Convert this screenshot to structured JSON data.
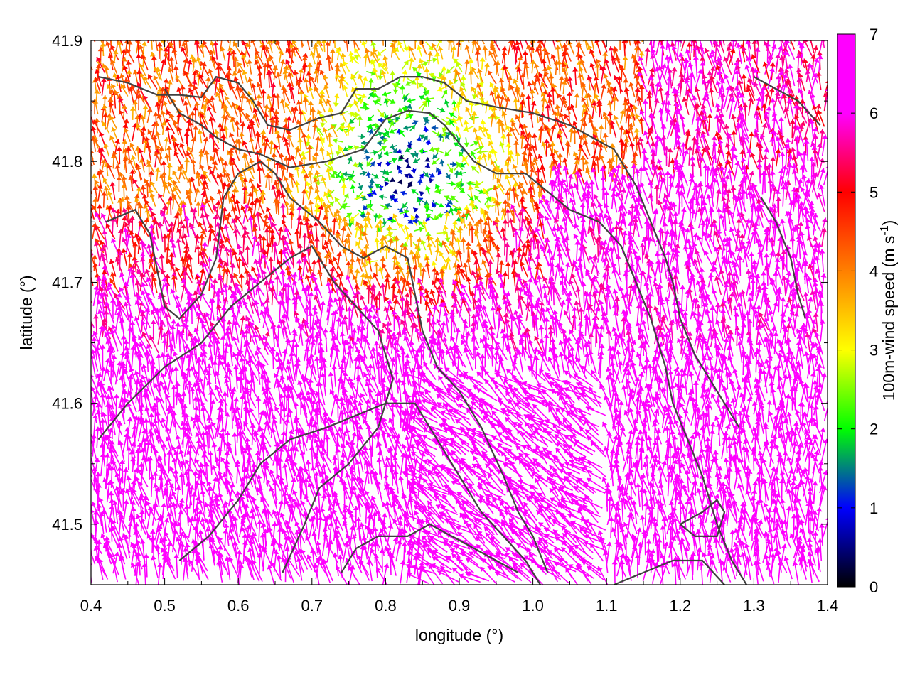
{
  "chart_data": {
    "type": "vector-field",
    "xlabel": "longitude (°)",
    "ylabel": "latitude (°)",
    "xlim": [
      0.4,
      1.4
    ],
    "ylim": [
      41.45,
      41.9
    ],
    "xticks": [
      0.4,
      0.5,
      0.6,
      0.7,
      0.8,
      0.9,
      1.0,
      1.1,
      1.2,
      1.3,
      1.4
    ],
    "xtick_labels": [
      "0.4",
      "0.5",
      "0.6",
      "0.7",
      "0.8",
      "0.9",
      "1.0",
      "1.1",
      "1.2",
      "1.3",
      "1.4"
    ],
    "yticks": [
      41.5,
      41.6,
      41.7,
      41.8,
      41.9
    ],
    "ytick_labels": [
      "41.5",
      "41.6",
      "41.7",
      "41.8",
      "41.9"
    ],
    "colorbar": {
      "label_main": "100m-wind speed (m s",
      "label_sup": "-1",
      "label_end": ")",
      "range": [
        0,
        7
      ],
      "ticks": [
        0,
        1,
        2,
        3,
        4,
        5,
        6,
        7
      ],
      "tick_labels": [
        "0",
        "1",
        "2",
        "3",
        "4",
        "5",
        "6",
        "7"
      ],
      "palette": [
        "#000000",
        "#0000ff",
        "#00ff00",
        "#ffff00",
        "#ff8000",
        "#ff0000",
        "#ff00ff"
      ]
    },
    "grid": false,
    "vectors": {
      "description_regions": [
        {
          "lon_range": [
            0.4,
            1.4
          ],
          "lat_range": [
            41.45,
            41.65
          ],
          "dominant_speed": 7,
          "dominant_direction": "northward to north-west"
        },
        {
          "lon_range": [
            0.4,
            1.4
          ],
          "lat_range": [
            41.65,
            41.78
          ],
          "dominant_speed": 5,
          "dominant_direction": "north-west"
        },
        {
          "lon_range": [
            0.6,
            1.0
          ],
          "lat_range": [
            41.78,
            41.9
          ],
          "dominant_speed": 3,
          "dominant_direction": "variable"
        }
      ]
    },
    "contours": [
      {
        "points": [
          [
            0.41,
            41.87
          ],
          [
            0.45,
            41.865
          ],
          [
            0.49,
            41.855
          ],
          [
            0.52,
            41.855
          ],
          [
            0.55,
            41.853
          ],
          [
            0.57,
            41.87
          ],
          [
            0.6,
            41.865
          ],
          [
            0.62,
            41.85
          ],
          [
            0.64,
            41.83
          ],
          [
            0.67,
            41.826
          ],
          [
            0.71,
            41.836
          ],
          [
            0.74,
            41.84
          ],
          [
            0.76,
            41.86
          ],
          [
            0.79,
            41.86
          ],
          [
            0.82,
            41.87
          ],
          [
            0.85,
            41.87
          ],
          [
            0.88,
            41.865
          ],
          [
            0.91,
            41.85
          ],
          [
            0.95,
            41.845
          ],
          [
            1.0,
            41.84
          ],
          [
            1.05,
            41.83
          ],
          [
            1.08,
            41.82
          ],
          [
            1.11,
            41.81
          ],
          [
            1.14,
            41.78
          ],
          [
            1.16,
            41.75
          ],
          [
            1.18,
            41.72
          ],
          [
            1.19,
            41.7
          ],
          [
            1.2,
            41.67
          ],
          [
            1.22,
            41.64
          ],
          [
            1.24,
            41.62
          ],
          [
            1.26,
            41.6
          ],
          [
            1.28,
            41.58
          ]
        ]
      },
      {
        "points": [
          [
            0.5,
            41.86
          ],
          [
            0.52,
            41.84
          ],
          [
            0.55,
            41.83
          ],
          [
            0.57,
            41.82
          ],
          [
            0.6,
            41.81
          ],
          [
            0.63,
            41.806
          ],
          [
            0.67,
            41.795
          ],
          [
            0.72,
            41.8
          ],
          [
            0.77,
            41.81
          ],
          [
            0.8,
            41.835
          ],
          [
            0.83,
            41.842
          ],
          [
            0.86,
            41.84
          ],
          [
            0.88,
            41.83
          ],
          [
            0.92,
            41.8
          ],
          [
            0.95,
            41.79
          ],
          [
            0.99,
            41.79
          ],
          [
            1.01,
            41.78
          ],
          [
            1.05,
            41.76
          ],
          [
            1.09,
            41.75
          ],
          [
            1.12,
            41.73
          ],
          [
            1.14,
            41.7
          ],
          [
            1.16,
            41.67
          ],
          [
            1.18,
            41.63
          ],
          [
            1.19,
            41.6
          ],
          [
            1.21,
            41.57
          ],
          [
            1.23,
            41.54
          ],
          [
            1.25,
            41.5
          ],
          [
            1.27,
            41.47
          ],
          [
            1.29,
            41.45
          ]
        ]
      },
      {
        "points": [
          [
            0.42,
            41.75
          ],
          [
            0.46,
            41.76
          ],
          [
            0.48,
            41.74
          ],
          [
            0.49,
            41.71
          ],
          [
            0.5,
            41.68
          ],
          [
            0.52,
            41.67
          ],
          [
            0.55,
            41.69
          ],
          [
            0.57,
            41.72
          ],
          [
            0.58,
            41.77
          ],
          [
            0.6,
            41.79
          ],
          [
            0.63,
            41.8
          ],
          [
            0.65,
            41.79
          ],
          [
            0.67,
            41.77
          ],
          [
            0.71,
            41.75
          ],
          [
            0.74,
            41.73
          ],
          [
            0.77,
            41.72
          ],
          [
            0.8,
            41.73
          ],
          [
            0.83,
            41.72
          ],
          [
            0.84,
            41.69
          ],
          [
            0.85,
            41.66
          ],
          [
            0.87,
            41.63
          ],
          [
            0.9,
            41.61
          ],
          [
            0.93,
            41.58
          ],
          [
            0.96,
            41.54
          ],
          [
            0.98,
            41.51
          ],
          [
            1.0,
            41.49
          ],
          [
            1.02,
            41.46
          ]
        ]
      },
      {
        "points": [
          [
            0.41,
            41.57
          ],
          [
            0.45,
            41.6
          ],
          [
            0.5,
            41.63
          ],
          [
            0.55,
            41.65
          ],
          [
            0.59,
            41.68
          ],
          [
            0.63,
            41.7
          ],
          [
            0.67,
            41.72
          ],
          [
            0.7,
            41.73
          ],
          [
            0.73,
            41.7
          ],
          [
            0.76,
            41.68
          ],
          [
            0.79,
            41.66
          ],
          [
            0.81,
            41.62
          ],
          [
            0.79,
            41.58
          ],
          [
            0.75,
            41.55
          ],
          [
            0.71,
            41.53
          ],
          [
            0.69,
            41.5
          ],
          [
            0.66,
            41.46
          ]
        ]
      },
      {
        "points": [
          [
            0.52,
            41.47
          ],
          [
            0.56,
            41.49
          ],
          [
            0.6,
            41.52
          ],
          [
            0.63,
            41.55
          ],
          [
            0.67,
            41.57
          ],
          [
            0.72,
            41.58
          ],
          [
            0.76,
            41.59
          ],
          [
            0.8,
            41.6
          ],
          [
            0.84,
            41.6
          ],
          [
            0.87,
            41.57
          ],
          [
            0.9,
            41.54
          ],
          [
            0.93,
            41.51
          ],
          [
            0.96,
            41.49
          ],
          [
            0.99,
            41.47
          ],
          [
            1.01,
            41.45
          ]
        ]
      },
      {
        "points": [
          [
            0.74,
            41.46
          ],
          [
            0.76,
            41.48
          ],
          [
            0.79,
            41.49
          ],
          [
            0.83,
            41.49
          ],
          [
            0.86,
            41.5
          ],
          [
            0.89,
            41.49
          ],
          [
            0.92,
            41.48
          ],
          [
            0.95,
            41.47
          ],
          [
            0.98,
            41.46
          ]
        ]
      },
      {
        "points": [
          [
            1.2,
            41.5
          ],
          [
            1.23,
            41.51
          ],
          [
            1.25,
            41.52
          ],
          [
            1.26,
            41.51
          ],
          [
            1.25,
            41.49
          ],
          [
            1.22,
            41.49
          ],
          [
            1.2,
            41.5
          ]
        ]
      },
      {
        "points": [
          [
            1.11,
            41.45
          ],
          [
            1.15,
            41.46
          ],
          [
            1.19,
            41.47
          ],
          [
            1.23,
            41.47
          ],
          [
            1.26,
            41.45
          ]
        ]
      },
      {
        "points": [
          [
            1.3,
            41.87
          ],
          [
            1.33,
            41.86
          ],
          [
            1.36,
            41.85
          ],
          [
            1.39,
            41.83
          ]
        ]
      },
      {
        "points": [
          [
            1.31,
            41.77
          ],
          [
            1.33,
            41.75
          ],
          [
            1.35,
            41.72
          ],
          [
            1.36,
            41.69
          ],
          [
            1.37,
            41.67
          ]
        ]
      }
    ]
  }
}
